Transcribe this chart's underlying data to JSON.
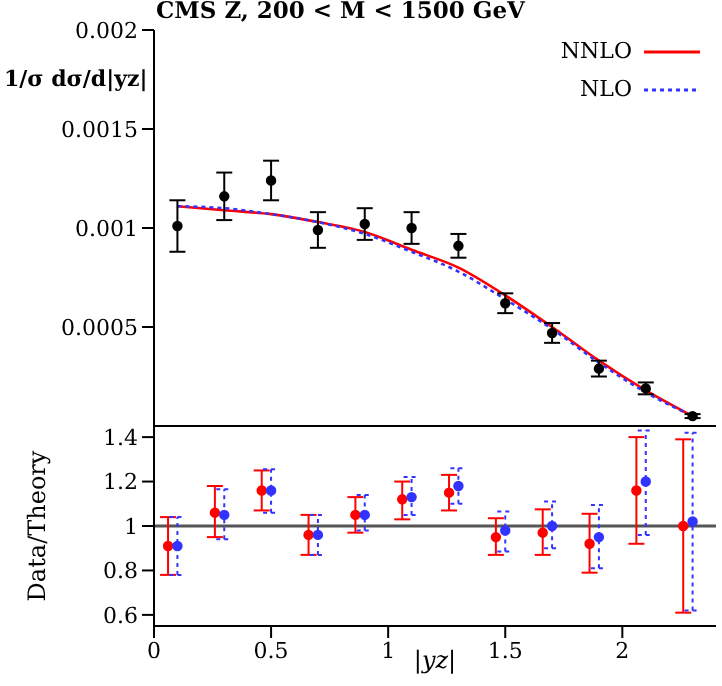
{
  "chart_data": [
    {
      "type": "line",
      "title": "CMS Z, 200 < M < 1500 GeV",
      "ylabel": "1/σ dσ/d|yz|",
      "xlim": [
        0,
        2.4
      ],
      "xticks": [
        0,
        0.5,
        1,
        1.5,
        2
      ],
      "ylim": [
        0,
        0.002
      ],
      "yticks": [
        0.0005,
        0.001,
        0.0015,
        0.002
      ],
      "tick_labels": "y",
      "legend": "top right",
      "grid": false,
      "x": [
        0.1,
        0.3,
        0.5,
        0.7,
        0.9,
        1.1,
        1.3,
        1.5,
        1.7,
        1.9,
        2.1,
        2.3
      ],
      "series": [
        {
          "name": "NNLO",
          "type": "line",
          "color": "#ff0000",
          "line_style": "solid",
          "marker": "none",
          "values": [
            0.00111,
            0.00109,
            0.00107,
            0.00103,
            0.00098,
            0.00089,
            0.0008,
            0.00066,
            0.0005,
            0.00033,
            0.00018,
            5e-05
          ]
        },
        {
          "name": "NLO",
          "type": "line",
          "color": "#3333ff",
          "line_style": "dotted",
          "marker": "none",
          "values": [
            0.00111,
            0.0011,
            0.00107,
            0.00103,
            0.00097,
            0.00088,
            0.00078,
            0.00064,
            0.00049,
            0.00032,
            0.00017,
            5e-05
          ]
        },
        {
          "type": "scatter",
          "color": "#000000",
          "marker": "circle",
          "values": [
            0.00101,
            0.00116,
            0.00124,
            0.00099,
            0.00102,
            0.001,
            0.00091,
            0.00062,
            0.00047,
            0.00029,
            0.00019,
            5e-05
          ],
          "errors": [
            0.00013,
            0.00012,
            0.0001,
            9e-05,
            8e-05,
            8e-05,
            6e-05,
            5e-05,
            5e-05,
            4e-05,
            3e-05,
            1e-05
          ]
        }
      ]
    },
    {
      "type": "scatter",
      "xlabel": "|yz|",
      "ylabel": "Data/Theory",
      "xlim": [
        0,
        2.4
      ],
      "xticks": [
        0,
        0.5,
        1,
        1.5,
        2
      ],
      "ylim": [
        0.55,
        1.45
      ],
      "yticks": [
        0.6,
        0.8,
        1,
        1.2,
        1.4
      ],
      "grid": false,
      "marker": "circle",
      "ref_lines": [
        {
          "axis": "y",
          "value": 1,
          "color": "#555555"
        }
      ],
      "series": [
        {
          "type": "scatter",
          "color": "#ff0000",
          "line_style": "solid",
          "x": [
            0.06,
            0.26,
            0.46,
            0.66,
            0.86,
            1.06,
            1.26,
            1.46,
            1.66,
            1.86,
            2.06,
            2.26
          ],
          "values": [
            0.91,
            1.06,
            1.16,
            0.96,
            1.05,
            1.12,
            1.15,
            0.95,
            0.97,
            0.92,
            1.16,
            1.0
          ],
          "errors": [
            [
              0.78,
              1.04
            ],
            [
              0.95,
              1.18
            ],
            [
              1.07,
              1.25
            ],
            [
              0.87,
              1.05
            ],
            [
              0.97,
              1.13
            ],
            [
              1.03,
              1.2
            ],
            [
              1.07,
              1.23
            ],
            [
              0.87,
              1.035
            ],
            [
              0.87,
              1.075
            ],
            [
              0.79,
              1.055
            ],
            [
              0.92,
              1.4
            ],
            [
              0.61,
              1.39
            ]
          ]
        },
        {
          "type": "scatter",
          "color": "#3333ff",
          "line_style": "dotted",
          "x": [
            0.1,
            0.3,
            0.5,
            0.7,
            0.9,
            1.1,
            1.3,
            1.5,
            1.7,
            1.9,
            2.1,
            2.3
          ],
          "values": [
            0.91,
            1.05,
            1.16,
            0.96,
            1.05,
            1.13,
            1.18,
            0.98,
            1.0,
            0.95,
            1.2,
            1.02
          ],
          "errors": [
            [
              0.78,
              1.04
            ],
            [
              0.94,
              1.165
            ],
            [
              1.06,
              1.255
            ],
            [
              0.87,
              1.05
            ],
            [
              0.98,
              1.14
            ],
            [
              1.05,
              1.22
            ],
            [
              1.1,
              1.26
            ],
            [
              0.885,
              1.065
            ],
            [
              0.9,
              1.11
            ],
            [
              0.81,
              1.095
            ],
            [
              0.96,
              1.43
            ],
            [
              0.62,
              1.42
            ]
          ]
        }
      ]
    }
  ]
}
